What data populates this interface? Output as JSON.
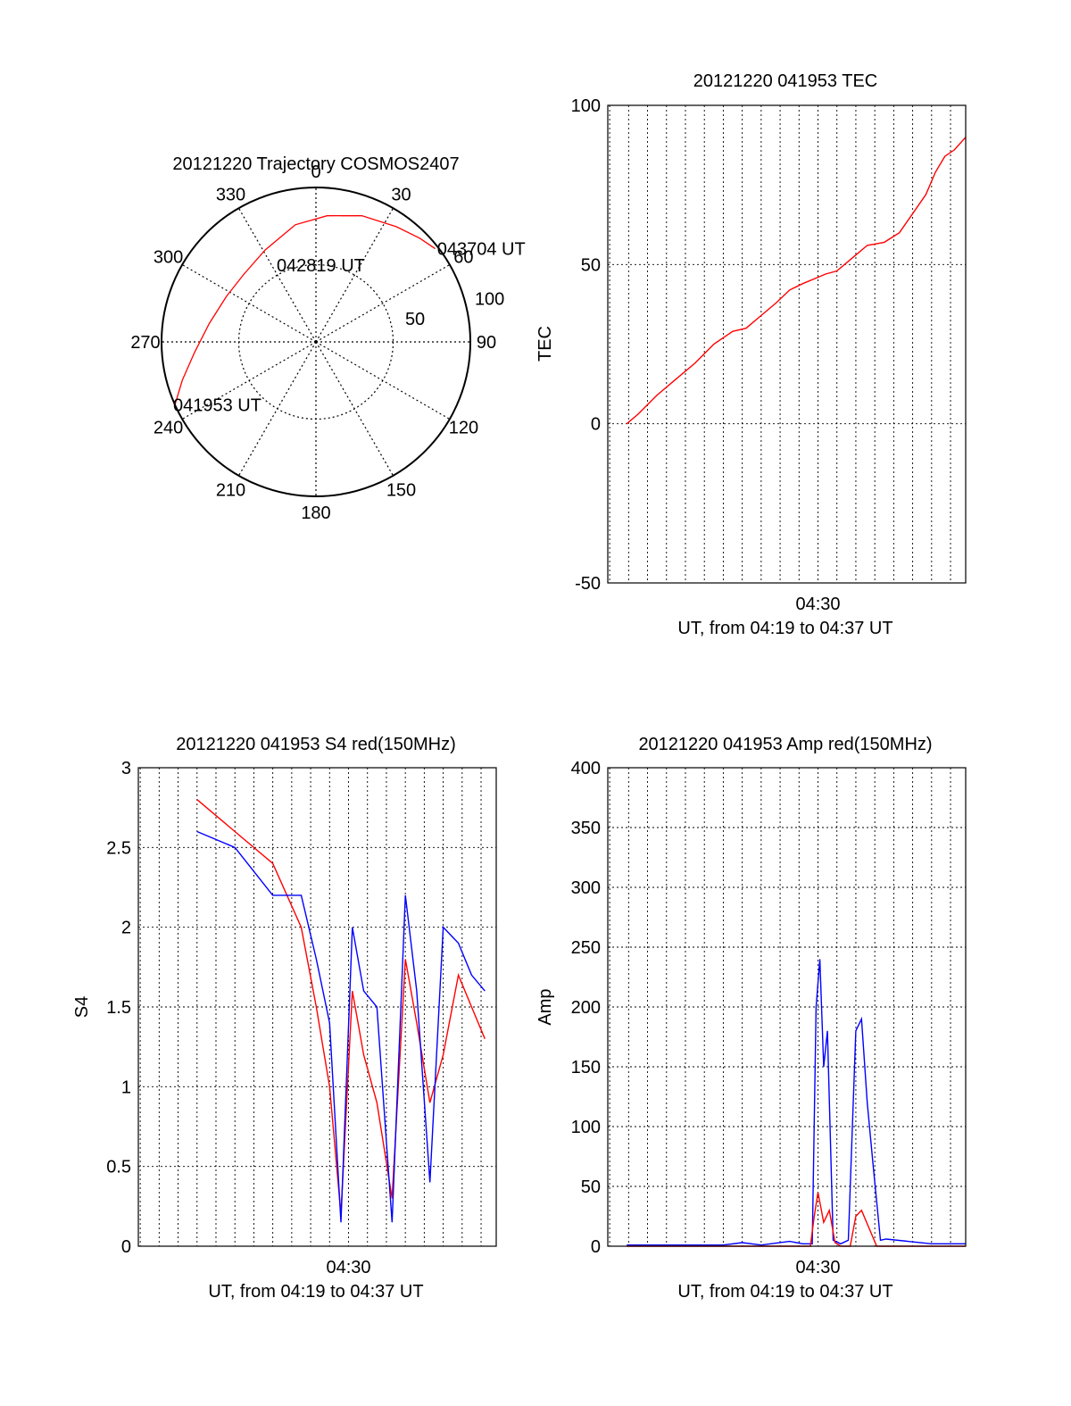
{
  "colors": {
    "red": "#ff0000",
    "blue": "#0000ff",
    "axis": "#000000",
    "grid": "#000000"
  },
  "chart_data": [
    {
      "type": "polar",
      "title": "20121220 Trajectory COSMOS2407",
      "azimuth_labels": [
        "0",
        "30",
        "60",
        "90",
        "120",
        "150",
        "180",
        "210",
        "240",
        "270",
        "300",
        "330"
      ],
      "radial_labels": [
        "50",
        "100"
      ],
      "rlim": [
        0,
        100
      ],
      "grid": true,
      "track": {
        "color": "#ff0000",
        "azimuth": [
          246,
          254,
          265,
          280,
          297,
          313,
          331,
          350,
          5,
          20,
          35,
          45,
          52
        ],
        "radius": [
          100,
          90,
          79,
          70,
          65,
          64,
          68,
          77,
          82,
          87,
          91,
          95,
          98
        ]
      },
      "annotations": [
        {
          "text": "043704 UT",
          "azimuth": 51,
          "radius": 98
        },
        {
          "text": "042819 UT",
          "azimuth": 342,
          "radius": 45
        },
        {
          "text": "041953 UT",
          "azimuth": 246,
          "radius": 100
        }
      ]
    },
    {
      "type": "line",
      "title": "20121220 041953 TEC",
      "xlabel": "UT, from 04:19 to 04:37 UT",
      "ylabel": "TEC",
      "x_tick_labels": [
        "04:30"
      ],
      "xlim_minutes": [
        18.9,
        37.8
      ],
      "ylim": [
        -50,
        100
      ],
      "y_ticks": [
        -50,
        0,
        50,
        100
      ],
      "grid": true,
      "series": [
        {
          "color": "#ff0000",
          "x": [
            19.9,
            20.5,
            21.5,
            22.5,
            23.5,
            24.5,
            25.5,
            26.2,
            27.0,
            27.8,
            28.5,
            29.2,
            30.0,
            30.4,
            31.0,
            31.8,
            32.6,
            33.5,
            34.3,
            35.0,
            35.7,
            36.2,
            36.7,
            37.2,
            37.8
          ],
          "y": [
            0,
            3,
            9,
            14,
            19,
            25,
            29,
            30,
            34,
            38,
            42,
            44,
            46,
            47,
            48,
            52,
            56,
            57,
            60,
            66,
            72,
            79,
            84,
            86,
            90
          ]
        }
      ]
    },
    {
      "type": "line",
      "title": "20121220 041953 S4 red(150MHz)",
      "xlabel": "UT, from 04:19 to 04:37 UT",
      "ylabel": "S4",
      "x_tick_labels": [
        "04:30"
      ],
      "xlim_minutes": [
        18.9,
        37.8
      ],
      "ylim": [
        0,
        3
      ],
      "y_ticks": [
        0,
        0.5,
        1,
        1.5,
        2,
        2.5,
        3
      ],
      "grid": true,
      "series": [
        {
          "color": "#ff0000",
          "x": [
            22.0,
            24.0,
            26.0,
            27.5,
            28.3,
            29.0,
            29.6,
            30.2,
            30.8,
            31.5,
            32.3,
            33.0,
            33.6,
            34.3,
            35.0,
            35.8,
            36.5,
            37.2
          ],
          "y": [
            2.8,
            2.6,
            2.4,
            2.0,
            1.5,
            1.0,
            0.2,
            1.6,
            1.2,
            0.9,
            0.3,
            1.8,
            1.4,
            0.9,
            1.2,
            1.7,
            1.5,
            1.3
          ]
        },
        {
          "color": "#0000ff",
          "x": [
            22.0,
            24.0,
            26.0,
            27.5,
            28.3,
            29.0,
            29.6,
            30.2,
            30.8,
            31.5,
            32.3,
            33.0,
            33.6,
            34.3,
            35.0,
            35.8,
            36.5,
            37.2
          ],
          "y": [
            2.6,
            2.5,
            2.2,
            2.2,
            1.8,
            1.4,
            0.15,
            2.0,
            1.6,
            1.5,
            0.15,
            2.2,
            1.6,
            0.4,
            2.0,
            1.9,
            1.7,
            1.6
          ]
        }
      ]
    },
    {
      "type": "line",
      "title": "20121220 041953 Amp red(150MHz)",
      "xlabel": "UT, from 04:19 to 04:37 UT",
      "ylabel": "Amp",
      "x_tick_labels": [
        "04:30"
      ],
      "xlim_minutes": [
        18.9,
        37.8
      ],
      "ylim": [
        0,
        400
      ],
      "y_ticks": [
        0,
        50,
        100,
        150,
        200,
        250,
        300,
        350,
        400
      ],
      "grid": true,
      "series": [
        {
          "color": "#0000ff",
          "x": [
            19.9,
            25.0,
            26.0,
            27.0,
            28.5,
            29.2,
            29.7,
            29.9,
            30.1,
            30.3,
            30.5,
            30.8,
            31.2,
            31.6,
            32.0,
            32.3,
            32.6,
            32.9,
            33.3,
            33.6,
            36.0,
            37.8
          ],
          "y": [
            1,
            1,
            3,
            1,
            4,
            2,
            2,
            200,
            240,
            150,
            180,
            5,
            2,
            5,
            180,
            190,
            120,
            70,
            5,
            6,
            2,
            2
          ]
        },
        {
          "color": "#ff0000",
          "x": [
            19.9,
            29.6,
            29.8,
            30.0,
            30.3,
            30.6,
            30.9,
            31.2,
            31.7,
            32.0,
            32.3,
            32.7,
            33.1,
            37.8
          ],
          "y": [
            0,
            0,
            25,
            45,
            20,
            30,
            3,
            0,
            0,
            25,
            30,
            15,
            0,
            0
          ]
        }
      ]
    }
  ]
}
